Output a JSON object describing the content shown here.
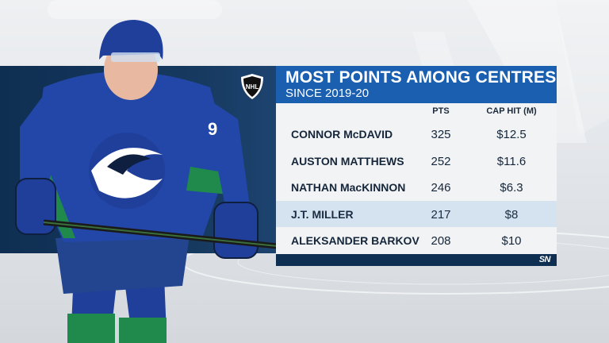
{
  "graphic": {
    "title": "MOST POINTS AMONG CENTRES",
    "subtitle": "SINCE 2019-20",
    "columns": {
      "points": "PTS",
      "cap_hit": "CAP HIT (M)"
    },
    "rows": [
      {
        "name": "CONNOR McDAVID",
        "pts": "325",
        "cap": "$12.5",
        "highlight": false
      },
      {
        "name": "AUSTON MATTHEWS",
        "pts": "252",
        "cap": "$11.6",
        "highlight": false
      },
      {
        "name": "NATHAN MacKINNON",
        "pts": "246",
        "cap": "$6.3",
        "highlight": false
      },
      {
        "name": "J.T. MILLER",
        "pts": "217",
        "cap": "$8",
        "highlight": true
      },
      {
        "name": "ALEKSANDER BARKOV",
        "pts": "208",
        "cap": "$10",
        "highlight": false
      }
    ],
    "footer_logo": "SN",
    "league_logo": "NHL",
    "player_number": "9"
  },
  "colors": {
    "title_bg": "#1b5fb0",
    "navy": "#0f2f52",
    "row_bg": "#f1f3f5",
    "row_highlight": "#d5e2ef",
    "jersey_blue": "#1f3f9a",
    "jersey_green": "#1f8a4c"
  },
  "icons": {
    "league": "nhl-shield-icon",
    "broadcaster": "sportsnet-logo-icon"
  }
}
